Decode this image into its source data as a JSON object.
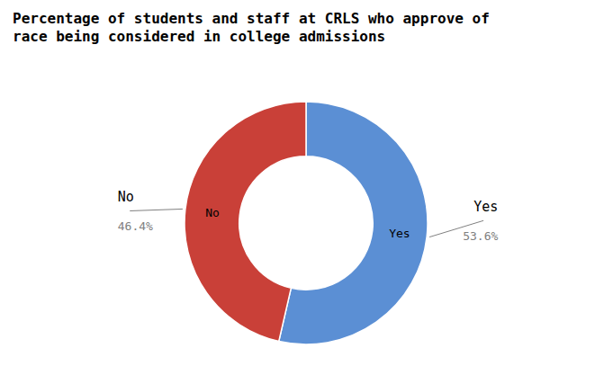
{
  "chart_data": {
    "type": "donut",
    "title": "Percentage of students and staff at CRLS who approve of\nrace being considered in college admissions",
    "categories": [
      "Yes",
      "No"
    ],
    "values": [
      53.6,
      46.4
    ],
    "value_labels": [
      "53.6%",
      "46.4%"
    ],
    "colors": [
      "#5b8fd4",
      "#c94038"
    ]
  }
}
